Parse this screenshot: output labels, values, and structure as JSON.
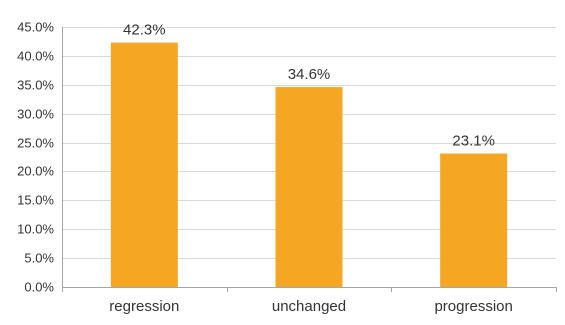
{
  "chart_data": {
    "type": "bar",
    "categories": [
      "regression",
      "unchanged",
      "progression"
    ],
    "values": [
      42.3,
      34.6,
      23.1
    ],
    "value_labels": [
      "42.3%",
      "34.6%",
      "23.1%"
    ],
    "title": "",
    "xlabel": "",
    "ylabel": "",
    "ylim": [
      0,
      45
    ],
    "y_ticks": [
      0,
      5,
      10,
      15,
      20,
      25,
      30,
      35,
      40,
      45
    ],
    "y_tick_labels": [
      "0.0%",
      "5.0%",
      "10.0%",
      "15.0%",
      "20.0%",
      "25.0%",
      "30.0%",
      "35.0%",
      "40.0%",
      "45.0%"
    ],
    "grid": true,
    "legend": "none",
    "colors": {
      "bar": "#F5A623",
      "grid": "#d9d9d9",
      "axis": "#a6a6a6",
      "text": "#333333"
    }
  }
}
